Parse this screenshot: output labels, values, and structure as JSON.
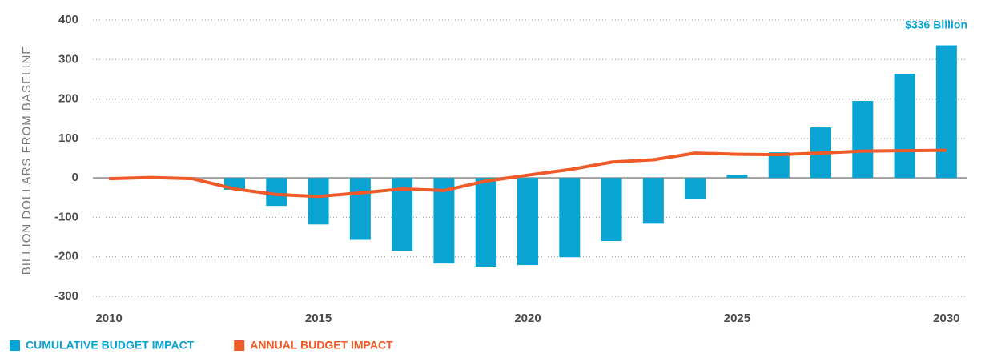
{
  "chart_data": {
    "type": "bar_line",
    "y_axis_label": "BILLION DOLLARS FROM BASELINE",
    "annotation": "$336 Billion",
    "x": [
      2010,
      2011,
      2012,
      2013,
      2014,
      2015,
      2016,
      2017,
      2018,
      2019,
      2020,
      2021,
      2022,
      2023,
      2024,
      2025,
      2026,
      2027,
      2028,
      2029,
      2030
    ],
    "series": [
      {
        "name": "CUMULATIVE BUDGET IMPACT",
        "type": "bar",
        "color": "#0aa4d2",
        "values": [
          null,
          null,
          null,
          -30,
          -71,
          -118,
          -157,
          -185,
          -217,
          -225,
          -221,
          -201,
          -160,
          -116,
          -53,
          8,
          65,
          128,
          195,
          264,
          336
        ]
      },
      {
        "name": "ANNUAL BUDGET IMPACT",
        "type": "line",
        "color": "#f05a28",
        "values": [
          -2,
          1,
          -2,
          -28,
          -42,
          -47,
          -38,
          -28,
          -32,
          -8,
          7,
          21,
          40,
          46,
          63,
          60,
          59,
          63,
          68,
          69,
          70
        ]
      }
    ],
    "xlim": [
      2009.5,
      2030.5
    ],
    "xticks": [
      2010,
      2015,
      2020,
      2025,
      2030
    ],
    "ylim": [
      -300,
      400
    ],
    "yticks": [
      -300,
      -200,
      -100,
      0,
      100,
      200,
      300,
      400
    ],
    "grid": true
  }
}
